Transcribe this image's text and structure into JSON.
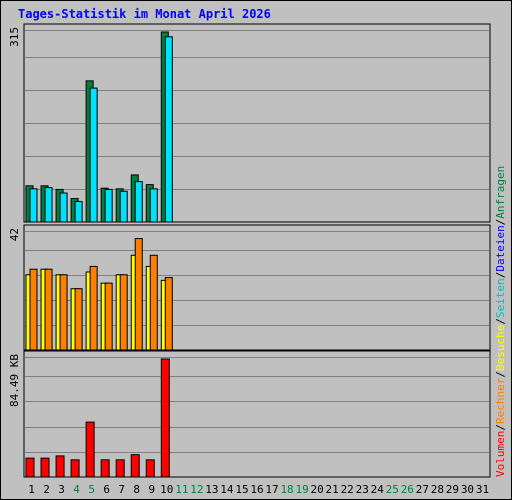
{
  "title": "Tages-Statistik im Monat April 2026",
  "colors": {
    "background": "#c0c0c0",
    "title": "#0000ff",
    "grid": "#808080",
    "anfragen": "#008040",
    "dateien": "#00e0ff",
    "seiten": "#00c0c0",
    "besuche": "#ffff00",
    "rechner": "#ff8000",
    "volumen": "#ff0000",
    "weekend_label": "#008040"
  },
  "legend": [
    {
      "key": "volumen",
      "text": "Volumen",
      "color": "#ff0000"
    },
    {
      "key": "sep1",
      "text": "/",
      "color": "#000000"
    },
    {
      "key": "rechner",
      "text": "Rechner",
      "color": "#ff8000"
    },
    {
      "key": "sep2",
      "text": "/",
      "color": "#000000"
    },
    {
      "key": "besuche",
      "text": "Besuche",
      "color": "#ffff00"
    },
    {
      "key": "sep3",
      "text": "/",
      "color": "#000000"
    },
    {
      "key": "seiten",
      "text": "Seiten",
      "color": "#00c0c0"
    },
    {
      "key": "sep4",
      "text": "/",
      "color": "#000000"
    },
    {
      "key": "dateien",
      "text": "Dateien",
      "color": "#0000ff"
    },
    {
      "key": "sep5",
      "text": "/",
      "color": "#000000"
    },
    {
      "key": "anfragen",
      "text": "Anfragen",
      "color": "#008040"
    }
  ],
  "chart_data": {
    "type": "bar",
    "title": "Tages-Statistik im Monat April 2026",
    "categories": [
      "1",
      "2",
      "3",
      "4",
      "5",
      "6",
      "7",
      "8",
      "9",
      "10",
      "11",
      "12",
      "13",
      "14",
      "15",
      "16",
      "17",
      "18",
      "19",
      "20",
      "21",
      "22",
      "23",
      "24",
      "25",
      "26",
      "27",
      "28",
      "29",
      "30",
      "31"
    ],
    "weekend_days": [
      "4",
      "5",
      "11",
      "12",
      "18",
      "19",
      "25",
      "26"
    ],
    "panels": [
      {
        "name": "requests",
        "max_label": "315",
        "ylim": [
          0,
          315
        ],
        "series": [
          {
            "name": "Anfragen",
            "values": [
              60,
              60,
              54,
              39,
              234,
              56,
              55,
              78,
              62,
              315,
              null,
              null,
              null,
              null,
              null,
              null,
              null,
              null,
              null,
              null,
              null,
              null,
              null,
              null,
              null,
              null,
              null,
              null,
              null,
              null,
              null
            ]
          },
          {
            "name": "Dateien",
            "values": [
              55,
              57,
              48,
              34,
              222,
              54,
              51,
              67,
              55,
              307,
              null,
              null,
              null,
              null,
              null,
              null,
              null,
              null,
              null,
              null,
              null,
              null,
              null,
              null,
              null,
              null,
              null,
              null,
              null,
              null,
              null
            ]
          }
        ]
      },
      {
        "name": "visits",
        "max_label": "42",
        "ylim": [
          0,
          42
        ],
        "series": [
          {
            "name": "Besuche",
            "values": [
              27,
              29,
              27,
              22,
              28,
              24,
              27,
              34,
              30,
              25,
              null,
              null,
              null,
              null,
              null,
              null,
              null,
              null,
              null,
              null,
              null,
              null,
              null,
              null,
              null,
              null,
              null,
              null,
              null,
              null,
              null
            ]
          },
          {
            "name": "Rechner",
            "values": [
              29,
              29,
              27,
              22,
              30,
              24,
              27,
              40,
              34,
              26,
              null,
              null,
              null,
              null,
              null,
              null,
              null,
              null,
              null,
              null,
              null,
              null,
              null,
              null,
              null,
              null,
              null,
              null,
              null,
              null,
              null
            ]
          }
        ]
      },
      {
        "name": "volume",
        "max_label": "84.49 KB",
        "ylim": [
          0,
          84.49
        ],
        "series": [
          {
            "name": "Volumen",
            "values": [
              13.5,
              13.5,
              15.1,
              12.3,
              39.3,
              12.3,
              12.3,
              16.0,
              12.3,
              84.49,
              null,
              null,
              null,
              null,
              null,
              null,
              null,
              null,
              null,
              null,
              null,
              null,
              null,
              null,
              null,
              null,
              null,
              null,
              null,
              null,
              null
            ]
          }
        ]
      }
    ]
  }
}
